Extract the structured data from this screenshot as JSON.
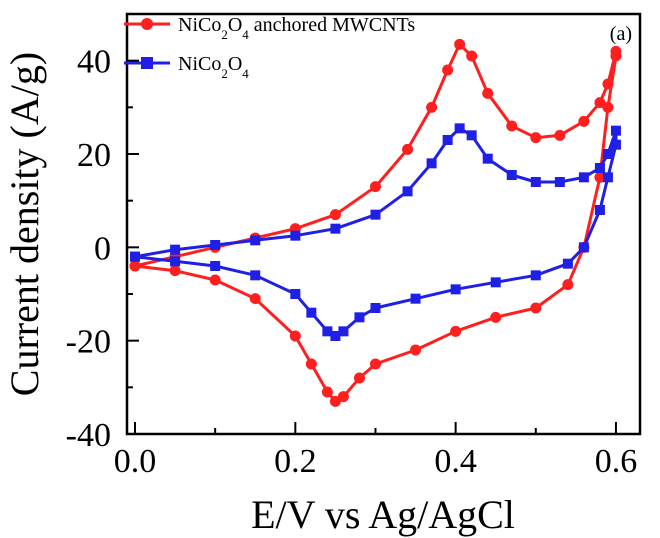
{
  "chart_data": {
    "type": "line",
    "panel_label": "(a)",
    "xlabel": "E/V vs Ag/AgCl",
    "ylabel": "Current density (A/g)",
    "xlim": [
      -0.01,
      0.63
    ],
    "ylim": [
      -40,
      50
    ],
    "xticks": [
      0.0,
      0.2,
      0.4,
      0.6
    ],
    "xtick_labels": [
      "0.0",
      "0.2",
      "0.4",
      "0.6"
    ],
    "yticks": [
      -40,
      -20,
      0,
      20,
      40
    ],
    "ytick_labels": [
      "-40",
      "-20",
      "0",
      "20",
      "40"
    ],
    "legend_position": "top-left",
    "series": [
      {
        "name": "NiCo2O4 anchored MWCNTs",
        "legend": {
          "pre": "NiCo",
          "sub1": "2",
          "mid": "O",
          "sub2": "4",
          "post": " anchored MWCNTs"
        },
        "color": "#ff1f1f",
        "marker": "circle",
        "x": [
          0.0,
          0.05,
          0.1,
          0.15,
          0.2,
          0.25,
          0.3,
          0.34,
          0.37,
          0.39,
          0.405,
          0.42,
          0.44,
          0.47,
          0.5,
          0.53,
          0.56,
          0.58,
          0.59,
          0.6,
          0.6,
          0.59,
          0.58,
          0.56,
          0.54,
          0.5,
          0.45,
          0.4,
          0.35,
          0.3,
          0.28,
          0.26,
          0.25,
          0.24,
          0.22,
          0.2,
          0.15,
          0.1,
          0.05,
          0.0
        ],
        "y": [
          -4,
          -2,
          0,
          2,
          4,
          7,
          13,
          21,
          30,
          38,
          43.5,
          41,
          33,
          26,
          23.5,
          24,
          27,
          31,
          35,
          42,
          41,
          30,
          15,
          0,
          -8,
          -13,
          -15,
          -18,
          -22,
          -25,
          -28,
          -32,
          -33,
          -31,
          -25,
          -19,
          -11,
          -7,
          -5,
          -4
        ]
      },
      {
        "name": "NiCo2O4",
        "legend": {
          "pre": "NiCo",
          "sub1": "2",
          "mid": "O",
          "sub2": "4",
          "post": ""
        },
        "color": "#1f1fe6",
        "marker": "square",
        "x": [
          0.0,
          0.05,
          0.1,
          0.15,
          0.2,
          0.25,
          0.3,
          0.34,
          0.37,
          0.39,
          0.405,
          0.42,
          0.44,
          0.47,
          0.5,
          0.53,
          0.56,
          0.58,
          0.59,
          0.6,
          0.6,
          0.59,
          0.58,
          0.56,
          0.54,
          0.5,
          0.45,
          0.4,
          0.35,
          0.3,
          0.28,
          0.26,
          0.25,
          0.24,
          0.22,
          0.2,
          0.15,
          0.1,
          0.05,
          0.0
        ],
        "y": [
          -2,
          -0.5,
          0.5,
          1.5,
          2.5,
          4,
          7,
          12,
          18,
          23,
          25.5,
          24,
          19,
          15.5,
          14,
          14,
          15,
          17,
          20,
          25,
          22,
          15,
          8,
          0,
          -3.5,
          -6,
          -7.5,
          -9,
          -11,
          -13,
          -15,
          -18,
          -19,
          -18,
          -14,
          -10,
          -6,
          -4,
          -3,
          -2
        ]
      }
    ]
  }
}
